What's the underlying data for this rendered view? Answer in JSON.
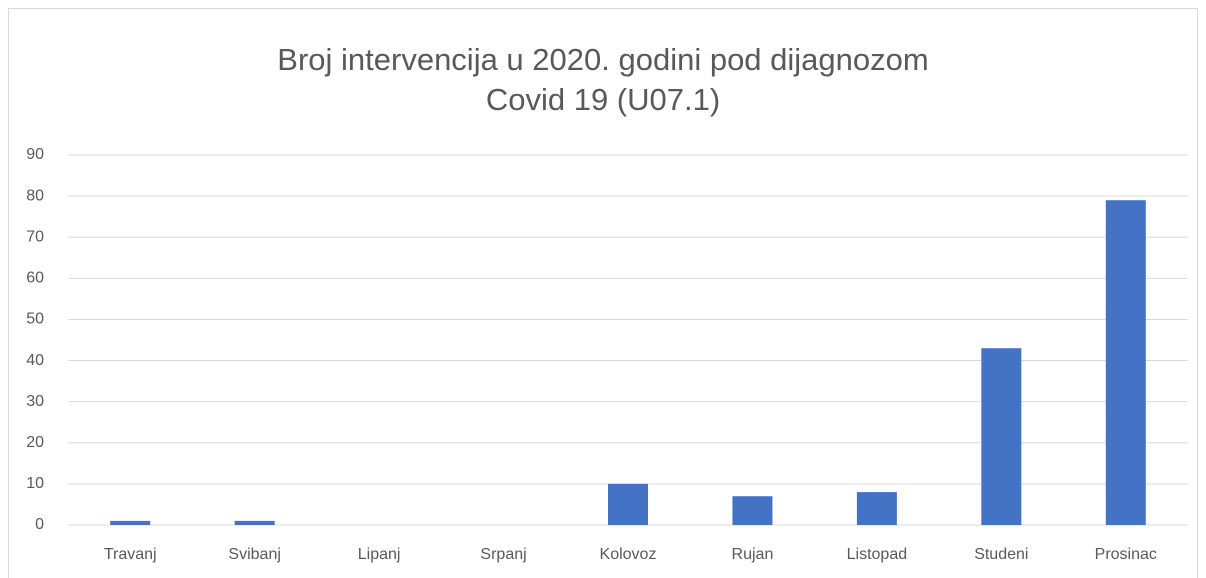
{
  "chart_data": {
    "type": "bar",
    "title": "Broj intervencija u 2020. godini pod dijagnozom Covid 19 (U07.1)",
    "categories": [
      "Travanj",
      "Svibanj",
      "Lipanj",
      "Srpanj",
      "Kolovoz",
      "Rujan",
      "Listopad",
      "Studeni",
      "Prosinac"
    ],
    "values": [
      1,
      1,
      0,
      0,
      10,
      7,
      8,
      43,
      79
    ],
    "color": "#4472c4",
    "ylim": [
      0,
      90
    ],
    "yticks": [
      0,
      10,
      20,
      30,
      40,
      50,
      60,
      70,
      80,
      90
    ],
    "grid": true
  }
}
